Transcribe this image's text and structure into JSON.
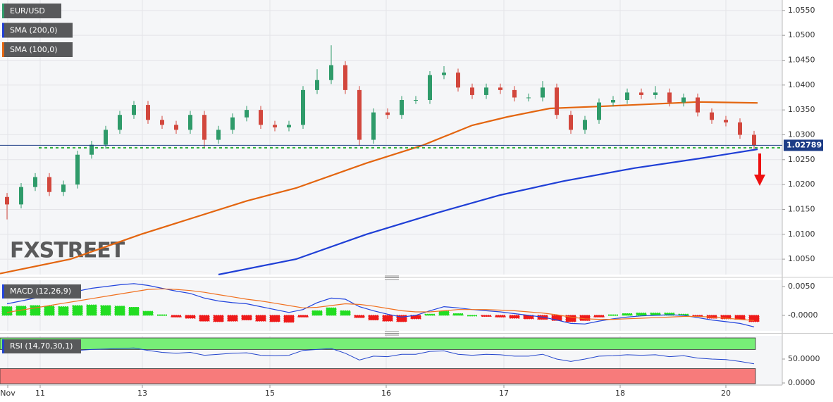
{
  "chart_data": [
    {
      "type": "candlestick",
      "symbol": "EUR/USD",
      "up_color": "#2f9b6a",
      "down_color": "#d2473d",
      "xlim": [
        0,
        111
      ],
      "ylim": [
        1.0019,
        1.0571
      ],
      "yticks": [
        {
          "value": 1.055,
          "label": "1.0550"
        },
        {
          "value": 1.05,
          "label": "1.0500"
        },
        {
          "value": 1.045,
          "label": "1.0450"
        },
        {
          "value": 1.04,
          "label": "1.0400"
        },
        {
          "value": 1.035,
          "label": "1.0350"
        },
        {
          "value": 1.03,
          "label": "1.0300"
        },
        {
          "value": 1.025,
          "label": "1.0250"
        },
        {
          "value": 1.02,
          "label": "1.0200"
        },
        {
          "value": 1.015,
          "label": "1.0150"
        },
        {
          "value": 1.01,
          "label": "1.0100"
        },
        {
          "value": 1.005,
          "label": "1.0050"
        }
      ],
      "xticks": [
        {
          "value": 1.1,
          "label": "Nov"
        },
        {
          "value": 5.7,
          "label": "11"
        },
        {
          "value": 20.2,
          "label": "13"
        },
        {
          "value": 38.3,
          "label": "15"
        },
        {
          "value": 54.8,
          "label": "16"
        },
        {
          "value": 71.5,
          "label": "17"
        },
        {
          "value": 88,
          "label": "18"
        },
        {
          "value": 103,
          "label": "20"
        }
      ],
      "grid": true,
      "watermark": "FXSTREET",
      "support": 1.0274,
      "support_color": "#2fae3a",
      "last_price": {
        "value": 1.02789,
        "label": "1.02789"
      },
      "last_color": "#1d3c86",
      "x": [
        1,
        3,
        5,
        7,
        9,
        11,
        13,
        15,
        17,
        19,
        21,
        23,
        25,
        27,
        29,
        31,
        33,
        35,
        37,
        39,
        41,
        43,
        45,
        47,
        49,
        51,
        53,
        55,
        57,
        59,
        61,
        63,
        65,
        67,
        69,
        71,
        73,
        75,
        77,
        79,
        81,
        83,
        85,
        87,
        89,
        91,
        93,
        95,
        97,
        99,
        101,
        103,
        105,
        107
      ],
      "open": [
        1.0175,
        1.016,
        1.0195,
        1.0215,
        1.0185,
        1.02,
        1.026,
        1.028,
        1.031,
        1.034,
        1.036,
        1.033,
        1.032,
        1.031,
        1.034,
        1.029,
        1.031,
        1.0335,
        1.035,
        1.032,
        1.0315,
        1.032,
        1.039,
        1.041,
        1.044,
        1.039,
        1.029,
        1.0345,
        1.034,
        1.037,
        1.037,
        1.042,
        1.0425,
        1.0395,
        1.038,
        1.0395,
        1.039,
        1.0375,
        1.0375,
        1.0395,
        1.034,
        1.031,
        1.033,
        1.0365,
        1.037,
        1.0385,
        1.038,
        1.0385,
        1.0365,
        1.0375,
        1.0345,
        1.033,
        1.0325,
        1.03
      ],
      "high": [
        1.0183,
        1.0203,
        1.0223,
        1.0223,
        1.0208,
        1.0268,
        1.0288,
        1.0318,
        1.0348,
        1.0368,
        1.0368,
        1.0338,
        1.0328,
        1.0348,
        1.0348,
        1.0318,
        1.0343,
        1.0358,
        1.0358,
        1.0328,
        1.0328,
        1.0398,
        1.0432,
        1.048,
        1.0448,
        1.0398,
        1.0353,
        1.0353,
        1.0378,
        1.0378,
        1.0428,
        1.0438,
        1.0433,
        1.0403,
        1.0403,
        1.0403,
        1.0398,
        1.0383,
        1.0408,
        1.0403,
        1.0348,
        1.0338,
        1.0373,
        1.0378,
        1.0393,
        1.0393,
        1.0398,
        1.0393,
        1.0383,
        1.0383,
        1.0353,
        1.0338,
        1.0333,
        1.0308
      ],
      "low": [
        1.013,
        1.0152,
        1.0187,
        1.0177,
        1.0177,
        1.0192,
        1.0252,
        1.0272,
        1.0302,
        1.0332,
        1.0322,
        1.0312,
        1.0302,
        1.0302,
        1.0275,
        1.0282,
        1.0302,
        1.0327,
        1.0312,
        1.0307,
        1.0307,
        1.0312,
        1.0382,
        1.0402,
        1.0382,
        1.0278,
        1.0282,
        1.0332,
        1.0332,
        1.0362,
        1.0362,
        1.0412,
        1.0387,
        1.0372,
        1.0372,
        1.0382,
        1.0367,
        1.0367,
        1.0367,
        1.0332,
        1.0302,
        1.0302,
        1.0322,
        1.0357,
        1.0362,
        1.0372,
        1.0372,
        1.0357,
        1.0357,
        1.0337,
        1.0322,
        1.0317,
        1.0292,
        1.0271
      ],
      "close": [
        1.016,
        1.0195,
        1.0215,
        1.0185,
        1.02,
        1.026,
        1.028,
        1.031,
        1.034,
        1.036,
        1.033,
        1.032,
        1.031,
        1.034,
        1.029,
        1.031,
        1.0335,
        1.035,
        1.032,
        1.0315,
        1.032,
        1.039,
        1.041,
        1.044,
        1.039,
        1.029,
        1.0345,
        1.034,
        1.037,
        1.037,
        1.042,
        1.0425,
        1.0395,
        1.038,
        1.0395,
        1.039,
        1.0375,
        1.0375,
        1.0395,
        1.034,
        1.031,
        1.033,
        1.0365,
        1.037,
        1.0385,
        1.038,
        1.0385,
        1.0365,
        1.0375,
        1.0345,
        1.033,
        1.0325,
        1.03,
        1.0279
      ],
      "series": [
        {
          "name": "SMA (200,0)",
          "color": "#1f3fd6",
          "x": [
            31,
            42,
            52,
            62,
            71,
            80,
            90,
            100,
            107.5
          ],
          "values": [
            1.0019,
            1.005,
            1.01,
            1.0143,
            1.0179,
            1.0207,
            1.0233,
            1.0254,
            1.0271
          ]
        },
        {
          "name": "SMA (100,0)",
          "color": "#e3650f",
          "x": [
            0,
            10,
            20,
            35,
            42,
            52,
            60,
            67,
            72,
            78,
            85,
            99,
            107.5
          ],
          "values": [
            1.0021,
            1.005,
            1.01,
            1.0167,
            1.0193,
            1.0243,
            1.0279,
            1.0319,
            1.0336,
            1.0353,
            1.0357,
            1.0366,
            1.0364
          ]
        }
      ]
    },
    {
      "type": "macd",
      "name": "MACD (12,26,9)",
      "ylim": [
        -0.0027,
        0.0061
      ],
      "yticks": [
        {
          "value": 0.005,
          "label": "0.0050"
        },
        {
          "value": 0,
          "label": "-0.0000"
        }
      ],
      "up_color": "#22dd22",
      "down_color": "#ee1a1a",
      "histogram": [
        0.0015,
        0.0016,
        0.0017,
        0.0016,
        0.0015,
        0.0017,
        0.0018,
        0.0017,
        0.0016,
        0.0014,
        0.0007,
        0.0001,
        -0.0003,
        -0.0005,
        -0.001,
        -0.0011,
        -0.001,
        -0.0008,
        -0.001,
        -0.0011,
        -0.0012,
        -0.0003,
        0.0008,
        0.0013,
        0.0008,
        -0.0004,
        -0.0008,
        -0.001,
        -0.0011,
        -0.0006,
        0.0002,
        0.0007,
        0.0003,
        0.0,
        -0.0002,
        -0.0003,
        -0.0005,
        -0.0006,
        -0.0007,
        -0.0009,
        -0.0011,
        -0.0009,
        -0.0003,
        0.0001,
        0.0003,
        0.0004,
        0.0004,
        0.0004,
        0.0002,
        -0.0002,
        -0.0005,
        -0.0006,
        -0.0007,
        -0.0011
      ],
      "series": [
        {
          "color": "#2244dd",
          "values": [
            0.002,
            0.0025,
            0.003,
            0.0033,
            0.0036,
            0.0042,
            0.0047,
            0.005,
            0.0053,
            0.0055,
            0.0052,
            0.0047,
            0.0042,
            0.0038,
            0.003,
            0.0025,
            0.0022,
            0.002,
            0.0015,
            0.001,
            0.0005,
            0.001,
            0.0022,
            0.003,
            0.0028,
            0.0015,
            0.0008,
            0.0002,
            -0.0003,
            0.0,
            0.0008,
            0.0015,
            0.0013,
            0.001,
            0.0008,
            0.0006,
            0.0003,
            0.0,
            -0.0003,
            -0.0008,
            -0.0014,
            -0.0015,
            -0.001,
            -0.0006,
            -0.0003,
            -0.0001,
            0.0,
            0.0001,
            0.0,
            -0.0004,
            -0.0008,
            -0.0011,
            -0.0014,
            -0.002
          ]
        },
        {
          "color": "#f07020",
          "values": [
            0.0005,
            0.0009,
            0.0013,
            0.0017,
            0.0021,
            0.0025,
            0.0029,
            0.0033,
            0.0037,
            0.0041,
            0.0045,
            0.0046,
            0.0045,
            0.0043,
            0.004,
            0.0036,
            0.0032,
            0.0028,
            0.0025,
            0.0021,
            0.0017,
            0.0013,
            0.0014,
            0.0017,
            0.002,
            0.0019,
            0.0016,
            0.0012,
            0.0008,
            0.0006,
            0.0006,
            0.0008,
            0.001,
            0.001,
            0.001,
            0.0009,
            0.0008,
            0.0006,
            0.0004,
            0.0001,
            -0.0003,
            -0.0006,
            -0.0007,
            -0.0007,
            -0.0006,
            -0.0005,
            -0.0004,
            -0.0003,
            -0.0002,
            -0.0002,
            -0.0003,
            -0.0005,
            -0.0007,
            -0.0009
          ]
        }
      ]
    },
    {
      "type": "rsi",
      "name": "RSI (14,70,30,1)",
      "ylim": [
        -4.4,
        98.5
      ],
      "yticks": [
        {
          "value": 50,
          "label": "50.0000"
        },
        {
          "value": 0,
          "label": "0.0000"
        }
      ],
      "overbought": 70,
      "oversold": 30,
      "overbought_color": "#77ee77",
      "oversold_color": "#f77b7b",
      "color": "#2244cc",
      "values": [
        72,
        70,
        68,
        69,
        66,
        68,
        70,
        71,
        72,
        73,
        68,
        64,
        62,
        64,
        58,
        60,
        62,
        63,
        58,
        57,
        58,
        68,
        70,
        72,
        62,
        48,
        56,
        55,
        60,
        60,
        66,
        67,
        60,
        58,
        60,
        59,
        56,
        56,
        60,
        50,
        45,
        50,
        56,
        57,
        59,
        58,
        59,
        55,
        57,
        52,
        50,
        49,
        45,
        40
      ]
    }
  ]
}
